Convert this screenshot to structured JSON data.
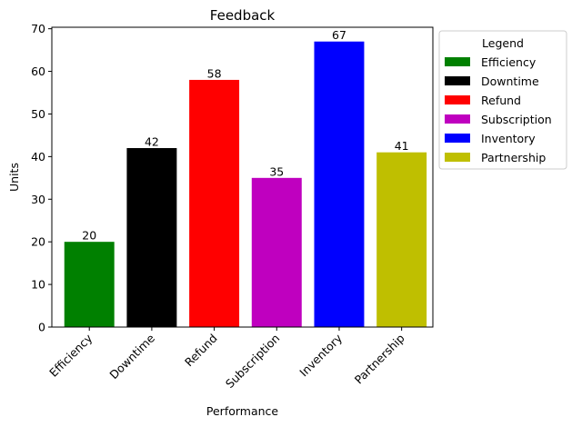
{
  "chart_data": {
    "type": "bar",
    "title": "Feedback",
    "xlabel": "Performance",
    "ylabel": "Units",
    "categories": [
      "Efficiency",
      "Downtime",
      "Refund",
      "Subscription",
      "Inventory",
      "Partnership"
    ],
    "values": [
      20,
      42,
      58,
      35,
      67,
      41
    ],
    "colors": [
      "#008000",
      "#000000",
      "#ff0000",
      "#bf00bf",
      "#0000ff",
      "#bfbf00"
    ],
    "ylim": [
      0,
      70.35
    ],
    "yticks": [
      0,
      10,
      20,
      30,
      40,
      50,
      60,
      70
    ],
    "grid": false,
    "legend": {
      "title": "Legend",
      "placement": "outside-right-top",
      "entries": [
        "Efficiency",
        "Downtime",
        "Refund",
        "Subscription",
        "Inventory",
        "Partnership"
      ]
    }
  }
}
